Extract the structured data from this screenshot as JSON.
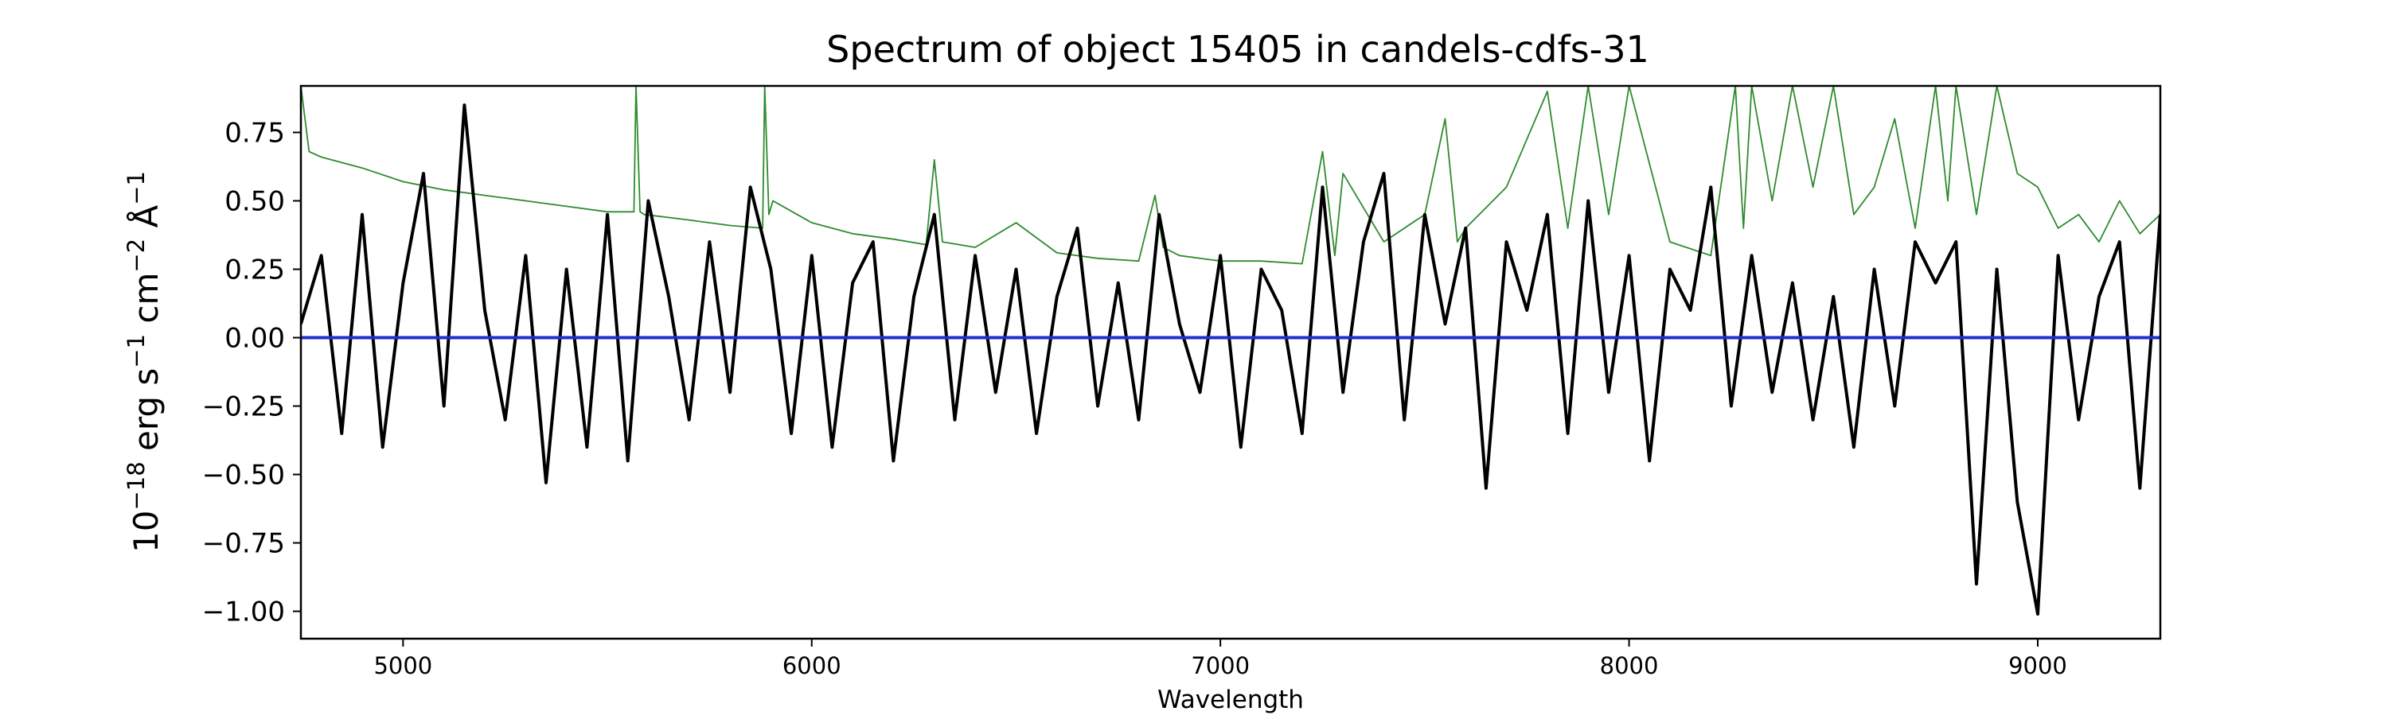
{
  "chart_data": {
    "type": "line",
    "title": "Spectrum of object 15405 in candels-cdfs-31",
    "xlabel": "Wavelength",
    "ylabel": "10−18 erg s−1 cm−2 Å−1",
    "ylabel_parts": {
      "base": "10",
      "exp": "−18",
      "erg": " erg s",
      "s_exp": "−1",
      "cm": " cm",
      "cm_exp": "−2",
      "ang": " Å",
      "ang_exp": "−1"
    },
    "xlim": [
      4750,
      9300
    ],
    "ylim": [
      -1.1,
      0.92
    ],
    "xticks": [
      5000,
      6000,
      7000,
      8000,
      9000
    ],
    "xtick_labels": [
      "5000",
      "6000",
      "7000",
      "8000",
      "9000"
    ],
    "yticks": [
      0.75,
      0.5,
      0.25,
      0.0,
      -0.25,
      -0.5,
      -0.75,
      -1.0
    ],
    "ytick_labels": [
      "0.75",
      "0.50",
      "0.25",
      "0.00",
      "−0.25",
      "−0.50",
      "−0.75",
      "−1.00"
    ],
    "grid": false,
    "series": [
      {
        "role": "flux",
        "color": "#000000",
        "x": [
          4750,
          4800,
          4850,
          4900,
          4950,
          5000,
          5050,
          5100,
          5150,
          5200,
          5250,
          5300,
          5350,
          5400,
          5450,
          5500,
          5550,
          5600,
          5650,
          5700,
          5750,
          5800,
          5850,
          5900,
          5950,
          6000,
          6050,
          6100,
          6150,
          6200,
          6250,
          6300,
          6350,
          6400,
          6450,
          6500,
          6550,
          6600,
          6650,
          6700,
          6750,
          6800,
          6850,
          6900,
          6950,
          7000,
          7050,
          7100,
          7150,
          7200,
          7250,
          7300,
          7350,
          7400,
          7450,
          7500,
          7550,
          7600,
          7650,
          7700,
          7750,
          7800,
          7850,
          7900,
          7950,
          8000,
          8050,
          8100,
          8150,
          8200,
          8250,
          8300,
          8350,
          8400,
          8450,
          8500,
          8550,
          8600,
          8650,
          8700,
          8750,
          8800,
          8850,
          8900,
          8950,
          9000,
          9050,
          9100,
          9150,
          9200,
          9250,
          9300
        ],
        "y": [
          0.05,
          0.3,
          -0.35,
          0.45,
          -0.4,
          0.2,
          0.6,
          -0.25,
          0.85,
          0.1,
          -0.3,
          0.3,
          -0.53,
          0.25,
          -0.4,
          0.45,
          -0.45,
          0.5,
          0.15,
          -0.3,
          0.35,
          -0.2,
          0.55,
          0.25,
          -0.35,
          0.3,
          -0.4,
          0.2,
          0.35,
          -0.45,
          0.15,
          0.45,
          -0.3,
          0.3,
          -0.2,
          0.25,
          -0.35,
          0.15,
          0.4,
          -0.25,
          0.2,
          -0.3,
          0.45,
          0.05,
          -0.2,
          0.3,
          -0.4,
          0.25,
          0.1,
          -0.35,
          0.55,
          -0.2,
          0.35,
          0.6,
          -0.3,
          0.45,
          0.05,
          0.4,
          -0.55,
          0.35,
          0.1,
          0.45,
          -0.35,
          0.5,
          -0.2,
          0.3,
          -0.45,
          0.25,
          0.1,
          0.55,
          -0.25,
          0.3,
          -0.2,
          0.2,
          -0.3,
          0.15,
          -0.4,
          0.25,
          -0.25,
          0.35,
          0.2,
          0.35,
          -0.9,
          0.25,
          -0.6,
          -1.01,
          0.3,
          -0.3,
          0.15,
          0.35,
          -0.55,
          0.45
        ]
      },
      {
        "role": "error",
        "color": "#2e8b2e",
        "x": [
          4750,
          4770,
          4800,
          4900,
          5000,
          5100,
          5200,
          5300,
          5400,
          5500,
          5565,
          5570,
          5580,
          5590,
          5700,
          5800,
          5880,
          5885,
          5895,
          5905,
          6000,
          6100,
          6200,
          6280,
          6300,
          6320,
          6400,
          6500,
          6600,
          6700,
          6800,
          6840,
          6860,
          6900,
          7000,
          7100,
          7200,
          7250,
          7280,
          7300,
          7400,
          7500,
          7550,
          7580,
          7600,
          7700,
          7800,
          7850,
          7900,
          7950,
          8000,
          8100,
          8200,
          8260,
          8280,
          8300,
          8350,
          8400,
          8450,
          8500,
          8550,
          8600,
          8650,
          8700,
          8750,
          8780,
          8800,
          8850,
          8900,
          8950,
          9000,
          9050,
          9100,
          9150,
          9200,
          9250,
          9300
        ],
        "y": [
          0.92,
          0.68,
          0.66,
          0.62,
          0.57,
          0.54,
          0.52,
          0.5,
          0.48,
          0.46,
          0.46,
          0.92,
          0.46,
          0.45,
          0.43,
          0.41,
          0.4,
          0.92,
          0.45,
          0.5,
          0.42,
          0.38,
          0.36,
          0.34,
          0.65,
          0.35,
          0.33,
          0.42,
          0.31,
          0.29,
          0.28,
          0.52,
          0.33,
          0.3,
          0.28,
          0.28,
          0.27,
          0.68,
          0.3,
          0.6,
          0.35,
          0.45,
          0.8,
          0.35,
          0.4,
          0.55,
          0.9,
          0.4,
          0.92,
          0.45,
          0.92,
          0.35,
          0.3,
          0.92,
          0.4,
          0.92,
          0.5,
          0.92,
          0.55,
          0.92,
          0.45,
          0.55,
          0.8,
          0.4,
          0.92,
          0.5,
          0.92,
          0.45,
          0.92,
          0.6,
          0.55,
          0.4,
          0.45,
          0.35,
          0.5,
          0.38,
          0.45
        ]
      },
      {
        "role": "zero",
        "color": "#1f2fd0",
        "x": [
          4750,
          9300
        ],
        "y": [
          0.0,
          0.0
        ]
      }
    ]
  }
}
